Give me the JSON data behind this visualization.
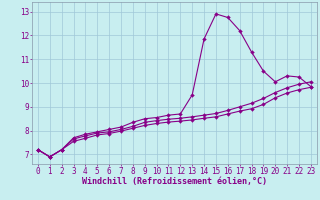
{
  "xlabel": "Windchill (Refroidissement éolien,°C)",
  "background_color": "#c8eef0",
  "grid_color": "#a0c8d8",
  "line_color": "#880088",
  "spine_color": "#8899aa",
  "xlim": [
    -0.5,
    23.5
  ],
  "ylim": [
    6.6,
    13.4
  ],
  "xticks": [
    0,
    1,
    2,
    3,
    4,
    5,
    6,
    7,
    8,
    9,
    10,
    11,
    12,
    13,
    14,
    15,
    16,
    17,
    18,
    19,
    20,
    21,
    22,
    23
  ],
  "yticks": [
    7,
    8,
    9,
    10,
    11,
    12,
    13
  ],
  "curve1_x": [
    0,
    1,
    2,
    3,
    4,
    5,
    6,
    7,
    8,
    9,
    10,
    11,
    12,
    13,
    14,
    15,
    16,
    17,
    18,
    19,
    20,
    21,
    22,
    23
  ],
  "curve1_y": [
    7.2,
    6.9,
    7.2,
    7.7,
    7.85,
    7.95,
    8.05,
    8.15,
    8.35,
    8.5,
    8.55,
    8.65,
    8.7,
    9.5,
    11.85,
    12.9,
    12.75,
    12.2,
    11.3,
    10.5,
    10.05,
    10.3,
    10.25,
    9.85
  ],
  "curve2_x": [
    0,
    1,
    2,
    3,
    4,
    5,
    6,
    7,
    8,
    9,
    10,
    11,
    12,
    13,
    14,
    15,
    16,
    17,
    18,
    19,
    20,
    21,
    22,
    23
  ],
  "curve2_y": [
    7.2,
    6.9,
    7.2,
    7.65,
    7.78,
    7.9,
    7.95,
    8.05,
    8.18,
    8.35,
    8.42,
    8.48,
    8.52,
    8.58,
    8.65,
    8.72,
    8.85,
    9.0,
    9.15,
    9.35,
    9.6,
    9.8,
    9.95,
    10.05
  ],
  "curve3_x": [
    0,
    1,
    2,
    3,
    4,
    5,
    6,
    7,
    8,
    9,
    10,
    11,
    12,
    13,
    14,
    15,
    16,
    17,
    18,
    19,
    20,
    21,
    22,
    23
  ],
  "curve3_y": [
    7.2,
    6.9,
    7.2,
    7.55,
    7.68,
    7.82,
    7.88,
    7.98,
    8.1,
    8.22,
    8.3,
    8.36,
    8.4,
    8.45,
    8.52,
    8.58,
    8.7,
    8.82,
    8.92,
    9.1,
    9.38,
    9.58,
    9.72,
    9.82
  ],
  "marker": "D",
  "marker_size": 2.0,
  "line_width": 0.8,
  "tick_fontsize": 5.5,
  "xlabel_fontsize": 6.0
}
